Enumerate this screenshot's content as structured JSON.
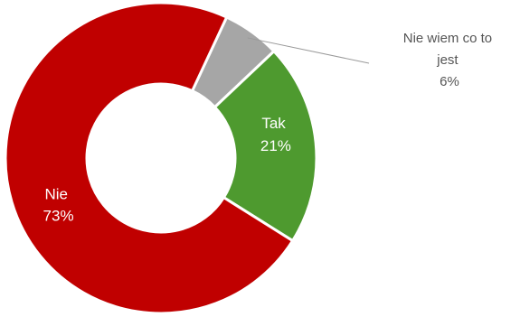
{
  "chart_data": {
    "type": "pie",
    "donut": true,
    "title": "",
    "categories": [
      "Nie wiem co to jest",
      "Tak",
      "Nie"
    ],
    "values": [
      6,
      21,
      73
    ],
    "colors": [
      "#a6a6a6",
      "#4e9a2f",
      "#c00000"
    ],
    "slices": [
      {
        "name": "Nie wiem co to jest",
        "label_lines": [
          "Nie wiem co to",
          "jest"
        ],
        "value": 6,
        "percent_label": "6%",
        "color": "#a6a6a6",
        "label_position": "outside"
      },
      {
        "name": "Tak",
        "label_lines": [
          "Tak"
        ],
        "value": 21,
        "percent_label": "21%",
        "color": "#4e9a2f",
        "label_position": "inside"
      },
      {
        "name": "Nie",
        "label_lines": [
          "Nie"
        ],
        "value": 73,
        "percent_label": "73%",
        "color": "#c00000",
        "label_position": "inside"
      }
    ],
    "legend": "none"
  }
}
